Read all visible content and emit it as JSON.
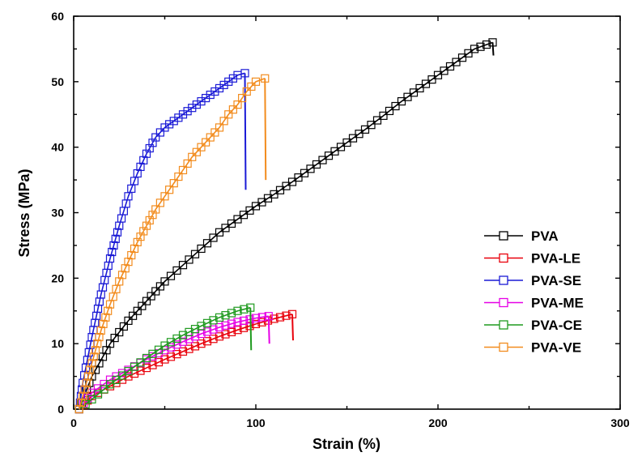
{
  "chart_data": {
    "type": "line",
    "title": "",
    "xlabel": "Strain (%)",
    "ylabel": "Stress (MPa)",
    "xlim": [
      0,
      300
    ],
    "ylim": [
      0,
      60
    ],
    "x_ticks": [
      "0",
      "100",
      "200",
      "300"
    ],
    "y_ticks": [
      "0",
      "10",
      "20",
      "30",
      "40",
      "50",
      "60"
    ],
    "grid": false,
    "legend_position": "right-bottom",
    "marker": "open-square",
    "series": [
      {
        "name": "PVA",
        "color": "#000000",
        "end_drop_to": 54,
        "x": [
          3,
          10,
          20,
          30,
          40,
          50,
          60,
          70,
          80,
          90,
          100,
          110,
          120,
          130,
          140,
          150,
          160,
          170,
          180,
          190,
          200,
          210,
          220,
          230
        ],
        "y": [
          0,
          5,
          10,
          13.5,
          16.5,
          19.5,
          22,
          24.5,
          27,
          29,
          31,
          32.8,
          34.7,
          36.7,
          38.7,
          40.7,
          42.7,
          44.8,
          47,
          49,
          51,
          53,
          55,
          56
        ]
      },
      {
        "name": "PVA-LE",
        "color": "#e8000b",
        "end_drop_to": 10.5,
        "x": [
          3,
          10,
          20,
          30,
          40,
          50,
          60,
          70,
          80,
          90,
          100,
          110,
          120
        ],
        "y": [
          0,
          2,
          3.5,
          5,
          6.3,
          7.6,
          8.8,
          10,
          11.1,
          12.1,
          13,
          13.8,
          14.5
        ]
      },
      {
        "name": "PVA-SE",
        "color": "#1a1ad6",
        "end_drop_to": 33.5,
        "x": [
          3,
          5,
          10,
          15,
          20,
          25,
          30,
          35,
          40,
          45,
          50,
          55,
          60,
          65,
          70,
          75,
          80,
          85,
          90,
          94
        ],
        "y": [
          0,
          4,
          11,
          17.5,
          23,
          28,
          32.5,
          36,
          39,
          41.5,
          43,
          44,
          45,
          46,
          47,
          48,
          49,
          50,
          51,
          51.3
        ]
      },
      {
        "name": "PVA-ME",
        "color": "#e600e6",
        "end_drop_to": 10,
        "x": [
          3,
          10,
          20,
          30,
          40,
          50,
          60,
          70,
          80,
          90,
          100,
          107
        ],
        "y": [
          0,
          2.5,
          4.5,
          6,
          7.6,
          9,
          10.3,
          11.5,
          12.5,
          13.3,
          13.9,
          14.2
        ]
      },
      {
        "name": "PVA-CE",
        "color": "#1f9a1f",
        "end_drop_to": 9,
        "x": [
          3,
          10,
          20,
          30,
          40,
          50,
          60,
          70,
          80,
          90,
          97
        ],
        "y": [
          0,
          1.5,
          3.8,
          5.8,
          7.8,
          9.7,
          11.3,
          12.7,
          14,
          15,
          15.5
        ]
      },
      {
        "name": "PVA-VE",
        "color": "#f28c1e",
        "end_drop_to": 35,
        "x": [
          3,
          8,
          15,
          20,
          25,
          30,
          35,
          40,
          45,
          50,
          55,
          60,
          65,
          70,
          75,
          80,
          85,
          90,
          95,
          100,
          105
        ],
        "y": [
          0,
          5,
          12,
          16,
          19.5,
          22.5,
          25.5,
          28,
          30.5,
          32.5,
          34.5,
          36.5,
          38.5,
          40,
          41.5,
          43,
          45,
          46.5,
          48.5,
          50,
          50.5
        ]
      }
    ]
  }
}
